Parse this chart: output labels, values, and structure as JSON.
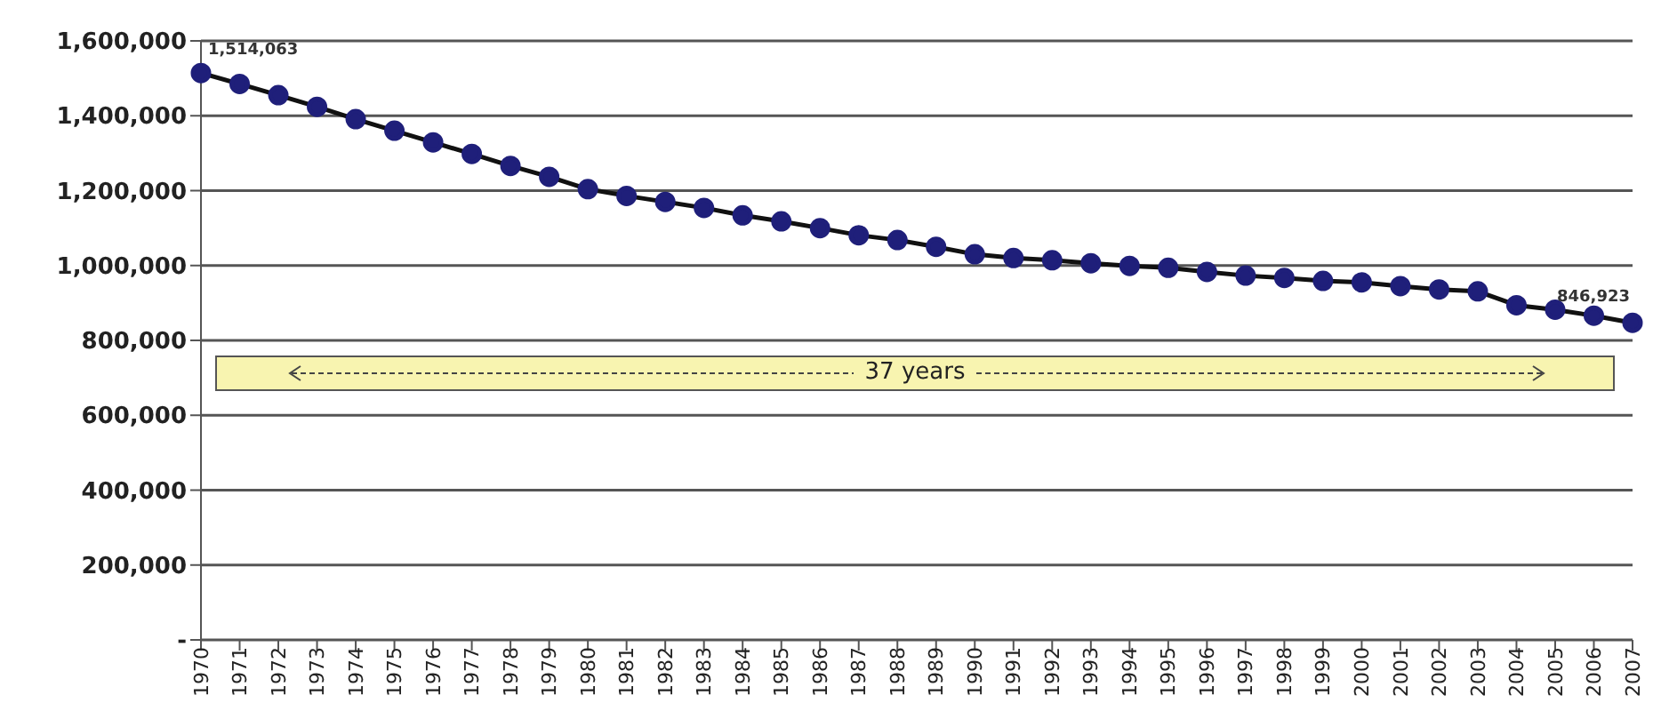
{
  "chart_data": {
    "type": "line",
    "categories": [
      "1970",
      "1971",
      "1972",
      "1973",
      "1974",
      "1975",
      "1976",
      "1977",
      "1978",
      "1979",
      "1980",
      "1981",
      "1982",
      "1983",
      "1984",
      "1985",
      "1986",
      "1987",
      "1988",
      "1989",
      "1990",
      "1991",
      "1992",
      "1993",
      "1994",
      "1995",
      "1996",
      "1997",
      "1998",
      "1999",
      "2000",
      "2001",
      "2002",
      "2003",
      "2004",
      "2005",
      "2006",
      "2007"
    ],
    "series": [
      {
        "color": "#1f1f7a",
        "values": [
          1514063,
          1485000,
          1455000,
          1424000,
          1391000,
          1360000,
          1329000,
          1298000,
          1266000,
          1237000,
          1204000,
          1186000,
          1170000,
          1154000,
          1134000,
          1118000,
          1100000,
          1081000,
          1068000,
          1050000,
          1030000,
          1020000,
          1014000,
          1006000,
          999000,
          994000,
          983000,
          973000,
          967000,
          959000,
          955000,
          945000,
          936000,
          931000,
          894000,
          882000,
          866000,
          846923
        ]
      }
    ],
    "ylim": [
      0,
      1600000
    ],
    "yticks": [
      {
        "value": 0,
        "label": "-"
      },
      {
        "value": 200000,
        "label": "200,000"
      },
      {
        "value": 400000,
        "label": "400,000"
      },
      {
        "value": 600000,
        "label": "600,000"
      },
      {
        "value": 800000,
        "label": "800,000"
      },
      {
        "value": 1000000,
        "label": "1,000,000"
      },
      {
        "value": 1200000,
        "label": "1,200,000"
      },
      {
        "value": 1400000,
        "label": "1,400,000"
      },
      {
        "value": 1600000,
        "label": "1,600,000"
      }
    ],
    "grid": "y",
    "marker": "circle",
    "line_style": "solid",
    "legend": false,
    "annotations": [
      {
        "text": "1,514,063",
        "x": "1970",
        "y": 1514063
      },
      {
        "text": "846,923",
        "x": "2007",
        "y": 846923
      },
      "37 years"
    ]
  }
}
